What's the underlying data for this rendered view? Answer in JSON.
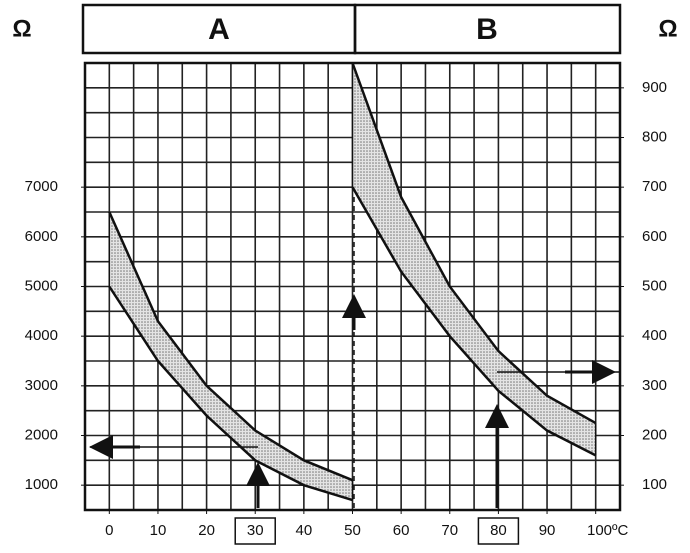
{
  "chart_data": {
    "type": "band",
    "panels": [
      "A",
      "B"
    ],
    "y_label": "Ω",
    "y2_label": "Ω",
    "xlim": [
      -5,
      105
    ],
    "xticks": [
      0,
      10,
      20,
      30,
      40,
      50,
      60,
      70,
      80,
      90,
      {
        "value": 100,
        "label": "100ºC"
      }
    ],
    "boxed_xticks": [
      30,
      80
    ],
    "ylim": [
      500,
      9500
    ],
    "yticks": [
      1000,
      2000,
      3000,
      4000,
      5000,
      6000,
      7000
    ],
    "y2lim": [
      50,
      950
    ],
    "y2ticks": [
      100,
      200,
      300,
      400,
      500,
      600,
      700,
      800,
      900
    ],
    "grid": true,
    "bands": [
      {
        "axis": "y",
        "color": "#c8c8c8",
        "x": [
          0,
          10,
          20,
          30,
          40,
          50
        ],
        "upper": [
          6500,
          4300,
          3000,
          2100,
          1500,
          1100
        ],
        "lower": [
          5000,
          3500,
          2400,
          1500,
          1000,
          700
        ]
      },
      {
        "axis": "y2",
        "color": "#c8c8c8",
        "x": [
          50,
          60,
          70,
          80,
          90,
          100
        ],
        "upper": [
          950,
          680,
          500,
          370,
          280,
          225
        ],
        "lower": [
          700,
          530,
          400,
          290,
          210,
          160
        ]
      }
    ]
  }
}
